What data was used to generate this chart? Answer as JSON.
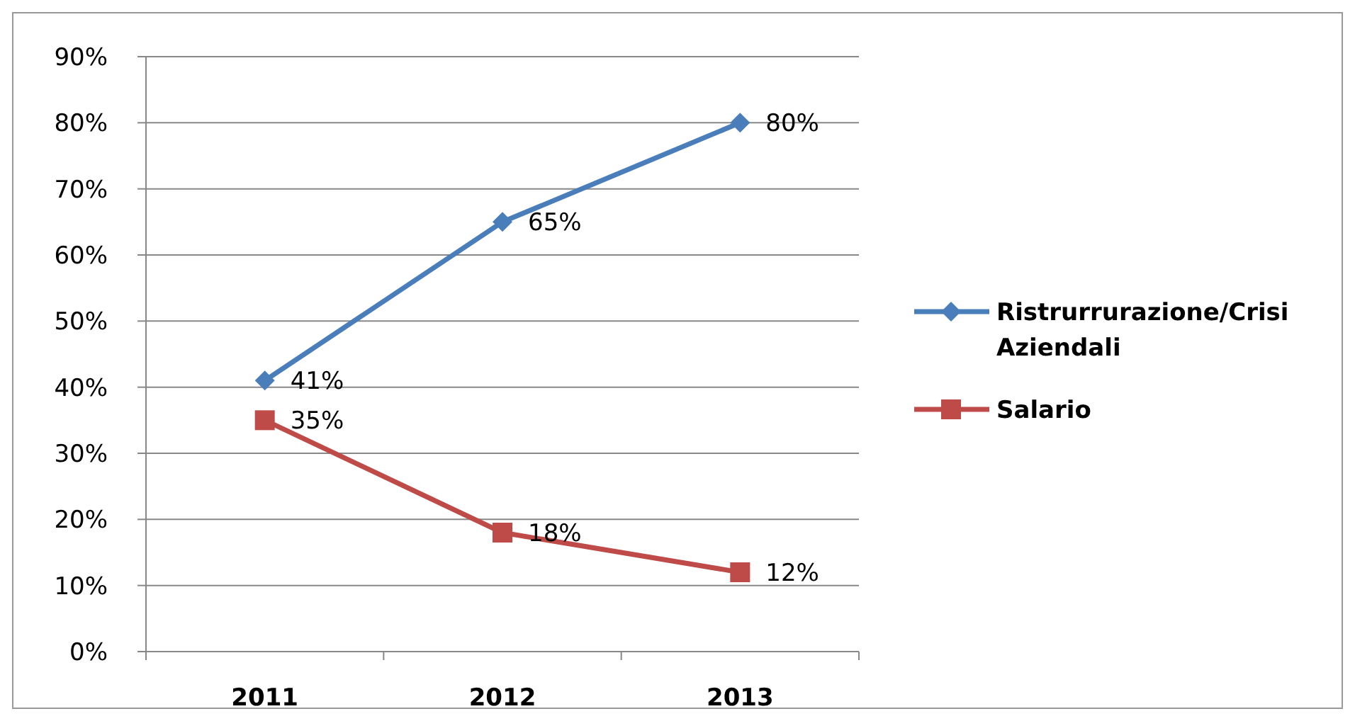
{
  "chart_data": {
    "type": "line",
    "categories": [
      "2011",
      "2012",
      "2013"
    ],
    "series": [
      {
        "name": "Ristrurrurazione/Crisi Aziendali",
        "color": "#4a7ebb",
        "values": [
          41,
          65,
          80
        ],
        "value_labels": [
          "41%",
          "65%",
          "80%"
        ],
        "marker": "diamond"
      },
      {
        "name": "Salario",
        "color": "#be4b48",
        "values": [
          35,
          18,
          12
        ],
        "value_labels": [
          "35%",
          "18%",
          "12%"
        ],
        "marker": "square"
      }
    ],
    "ylim": [
      0,
      90
    ],
    "yticks": [
      {
        "value": 0,
        "label": "0%"
      },
      {
        "value": 10,
        "label": "10%"
      },
      {
        "value": 20,
        "label": "20%"
      },
      {
        "value": 30,
        "label": "30%"
      },
      {
        "value": 40,
        "label": "40%"
      },
      {
        "value": 50,
        "label": "50%"
      },
      {
        "value": 60,
        "label": "60%"
      },
      {
        "value": 70,
        "label": "70%"
      },
      {
        "value": 80,
        "label": "80%"
      },
      {
        "value": 90,
        "label": "90%"
      }
    ],
    "grid": "y",
    "legend": "right",
    "line_style": "solid"
  }
}
